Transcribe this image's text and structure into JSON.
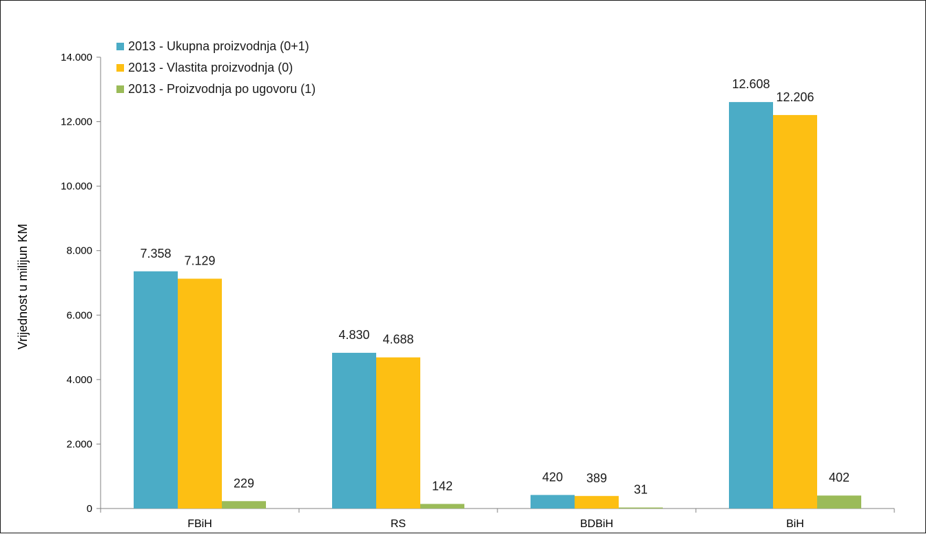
{
  "chart_data": {
    "type": "bar",
    "title": "",
    "xlabel": "",
    "ylabel": "Vrijednost u milijun KM",
    "categories": [
      "FBiH",
      "RS",
      "BDBiH",
      "BiH"
    ],
    "series": [
      {
        "name": "2013 - Ukupna proizvodnja (0+1)",
        "color": "#4bacc6",
        "values": [
          7358,
          4830,
          420,
          12608
        ],
        "labels": [
          "7.358",
          "4.830",
          "420",
          "12.608"
        ]
      },
      {
        "name": "2013 - Vlastita proizvodnja (0)",
        "color": "#fdbf13",
        "values": [
          7129,
          4688,
          389,
          12206
        ],
        "labels": [
          "7.129",
          "4.688",
          "389",
          "12.206"
        ]
      },
      {
        "name": "2013 - Proizvodnja po ugovoru (1)",
        "color": "#9bbb59",
        "values": [
          229,
          142,
          31,
          402
        ],
        "labels": [
          "229",
          "142",
          "31",
          "402"
        ]
      }
    ],
    "ylim": [
      0,
      14000
    ],
    "yticks": [
      0,
      2000,
      4000,
      6000,
      8000,
      10000,
      12000,
      14000
    ],
    "ytick_labels": [
      "0",
      "2.000",
      "4.000",
      "6.000",
      "8.000",
      "10.000",
      "12.000",
      "14.000"
    ],
    "grid": false,
    "legend_position": "top-left"
  }
}
